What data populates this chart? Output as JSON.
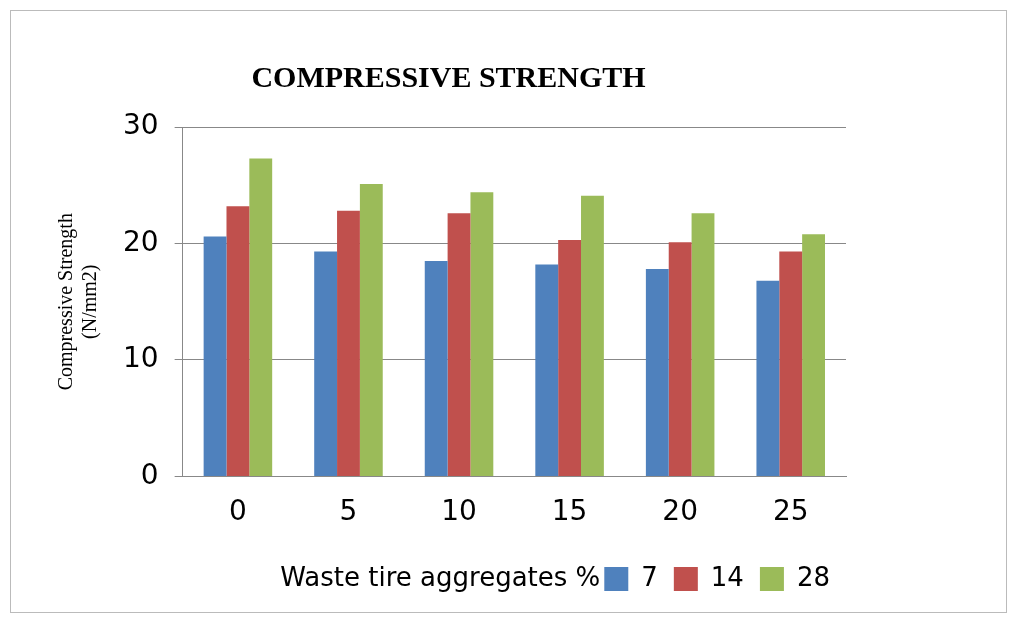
{
  "chart_data": {
    "type": "bar",
    "title": "COMPRESSIVE STRENGTH",
    "xlabel": "Waste tire aggregates %",
    "ylabel": "Compressive Strength\n(N/mm2)",
    "categories": [
      "0",
      "5",
      "10",
      "15",
      "20",
      "25"
    ],
    "series": [
      {
        "name": "7",
        "color": "#4f81bd",
        "values": [
          20.6,
          19.3,
          18.5,
          18.2,
          17.8,
          16.8
        ]
      },
      {
        "name": "14",
        "color": "#c0504d",
        "values": [
          23.2,
          22.8,
          22.6,
          20.3,
          20.1,
          19.3
        ]
      },
      {
        "name": "28",
        "color": "#9bbb59",
        "values": [
          27.3,
          25.1,
          24.4,
          24.1,
          22.6,
          20.8
        ]
      }
    ],
    "ylim": [
      0,
      30
    ],
    "yticks": [
      0,
      10,
      20,
      30
    ],
    "grid": "y",
    "legend": "bottom"
  }
}
